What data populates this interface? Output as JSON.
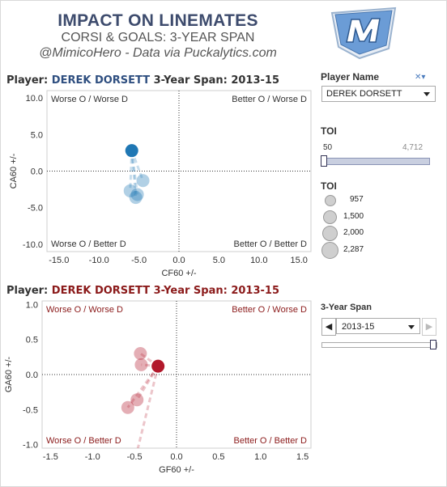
{
  "header": {
    "title": "IMPACT ON LINEMATES",
    "subtitle": "CORSI & GOALS: 3-YEAR SPAN",
    "credit": "@MimicoHero - Data via Puckalytics.com"
  },
  "player_filter": {
    "label": "Player Name",
    "selected": "DEREK DORSETT"
  },
  "toi_filter": {
    "label": "TOI",
    "min": "50",
    "max": "4,712"
  },
  "toi_legend": {
    "label": "TOI",
    "entries": [
      "957",
      "1,500",
      "2,000",
      "2,287"
    ]
  },
  "span_filter": {
    "label": "3-Year Span",
    "selected": "2013-15",
    "prev": "◀",
    "next": "▶"
  },
  "chart_data": [
    {
      "type": "scatter",
      "title_prefix": "Player:",
      "player": "DEREK DORSETT",
      "span_label": "3-Year Span: 2013-15",
      "xlabel": "CF60 +/-",
      "ylabel": "CA60 +/-",
      "xlim": [
        -16.5,
        16.5
      ],
      "ylim": [
        -11,
        11
      ],
      "xticks": [
        "-15.0",
        "-10.0",
        "-5.0",
        "0.0",
        "5.0",
        "10.0",
        "15.0"
      ],
      "xtick_values": [
        -15,
        -10,
        -5,
        0,
        5,
        10,
        15
      ],
      "yticks": [
        "10.0",
        "5.0",
        "0.0",
        "-5.0",
        "-10.0"
      ],
      "ytick_values": [
        10,
        5,
        0,
        -5,
        -10
      ],
      "quadrants": {
        "top_left": "Worse O / Worse D",
        "top_right": "Better O / Worse D",
        "bottom_left": "Worse O / Better D",
        "bottom_right": "Better O / Better D"
      },
      "color": "#1f77b4",
      "player_point": {
        "x": -5.9,
        "y": 2.8
      },
      "linemates": [
        {
          "x": -4.5,
          "y": -1.3
        },
        {
          "x": -5.2,
          "y": -3.2
        },
        {
          "x": -6.1,
          "y": -2.7
        },
        {
          "x": -5.4,
          "y": -3.6
        }
      ]
    },
    {
      "type": "scatter",
      "title_prefix": "Player:",
      "player": "DEREK DORSETT",
      "span_label": "3-Year Span: 2013-15",
      "xlabel": "GF60 +/-",
      "ylabel": "GA60 +/-",
      "xlim": [
        -1.6,
        1.6
      ],
      "ylim": [
        -1.05,
        1.05
      ],
      "xticks": [
        "-1.5",
        "-1.0",
        "-0.5",
        "0.0",
        "0.5",
        "1.0",
        "1.5"
      ],
      "xtick_values": [
        -1.5,
        -1.0,
        -0.5,
        0,
        0.5,
        1.0,
        1.5
      ],
      "yticks": [
        "1.0",
        "0.5",
        "0.0",
        "-0.5",
        "-1.0"
      ],
      "ytick_values": [
        1.0,
        0.5,
        0,
        -0.5,
        -1.0
      ],
      "quadrants": {
        "top_left": "Worse O / Worse D",
        "top_right": "Better O / Worse D",
        "bottom_left": "Worse O / Better D",
        "bottom_right": "Better O / Better D"
      },
      "color": "#b2182b",
      "player_point": {
        "x": -0.22,
        "y": 0.12
      },
      "linemates": [
        {
          "x": -0.43,
          "y": 0.3
        },
        {
          "x": -0.42,
          "y": 0.14
        },
        {
          "x": -0.47,
          "y": -0.36
        },
        {
          "x": -0.58,
          "y": -0.47
        },
        {
          "x": -0.48,
          "y": -1.15
        }
      ]
    }
  ]
}
